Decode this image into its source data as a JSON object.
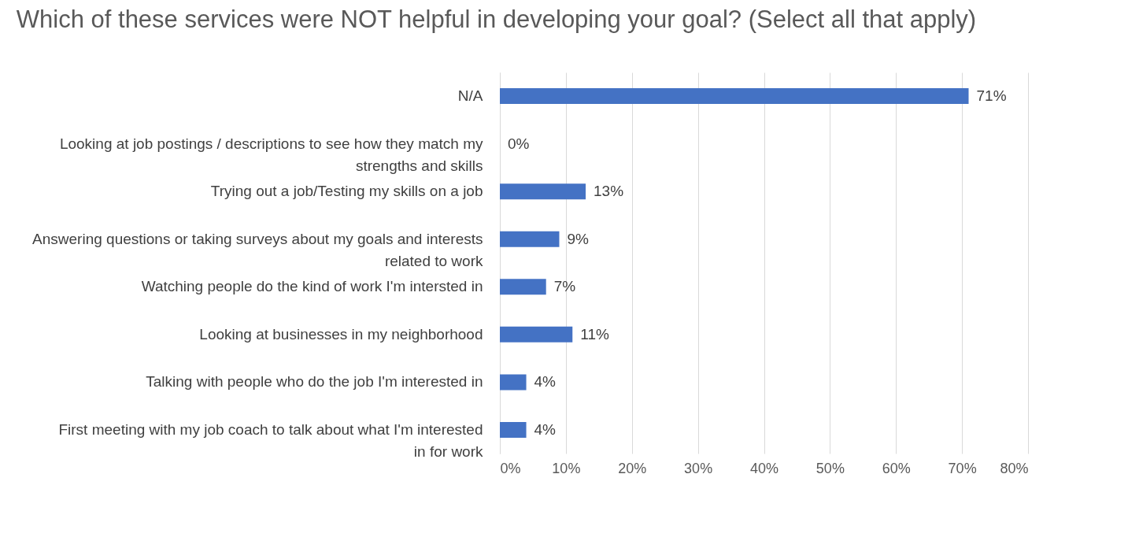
{
  "chart_data": {
    "type": "bar",
    "orientation": "horizontal",
    "title": "Which of these services were NOT helpful in developing your goal?\n(Select all that apply)",
    "categories": [
      "N/A",
      "Looking at job postings / descriptions to see how they match my strengths and skills",
      "Trying out a job/Testing my skills on a job",
      "Answering questions or taking surveys about my goals and interests related to work",
      "Watching people do the kind of work I'm intersted in",
      "Looking at businesses in my neighborhood",
      "Talking with people who do the job I'm interested in",
      "First meeting with my job coach to talk about what I'm interested in for work"
    ],
    "values": [
      71,
      0,
      13,
      9,
      7,
      11,
      4,
      4
    ],
    "value_labels": [
      "71%",
      "0%",
      "13%",
      "9%",
      "7%",
      "11%",
      "4%",
      "4%"
    ],
    "color": "#4472c4",
    "xlim": [
      0,
      80
    ],
    "xticks": [
      {
        "value": 0,
        "label": "0%"
      },
      {
        "value": 10,
        "label": "10%"
      },
      {
        "value": 20,
        "label": "20%"
      },
      {
        "value": 30,
        "label": "30%"
      },
      {
        "value": 40,
        "label": "40%"
      },
      {
        "value": 50,
        "label": "50%"
      },
      {
        "value": 60,
        "label": "60%"
      },
      {
        "value": 70,
        "label": "70%"
      },
      {
        "value": 80,
        "label": "80%"
      }
    ],
    "grid": "x"
  }
}
